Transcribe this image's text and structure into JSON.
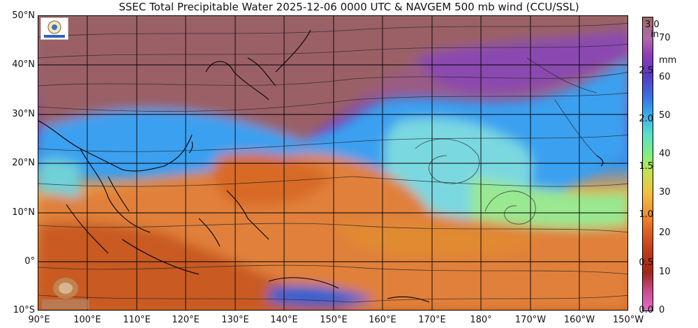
{
  "title": "SSEC Total Precipitable Water  2025-12-06 0000 UTC & NAVGEM 500 mb wind (CCU/SSL)",
  "lat_labels": [
    "50°N",
    "40°N",
    "30°N",
    "20°N",
    "10°N",
    "0°",
    "10°S"
  ],
  "lon_labels": [
    "90°E",
    "100°E",
    "110°E",
    "120°E",
    "130°E",
    "140°E",
    "150°E",
    "160°E",
    "170°E",
    "180°",
    "170°W",
    "160°W",
    "150°W"
  ],
  "colorbar": {
    "unit_in": "in",
    "unit_mm": "mm",
    "in_ticks": [
      "3.0",
      "2.5",
      "2.0",
      "1.5",
      "1.0",
      "0.5",
      "0.0"
    ],
    "mm_ticks": [
      "70",
      "60",
      "50",
      "40",
      "30",
      "20",
      "10",
      "0"
    ],
    "colors": [
      "#9a6a62",
      "#b06aa8",
      "#8c3ab8",
      "#5a3ac4",
      "#3a70e0",
      "#3aaaf0",
      "#5ae0c8",
      "#80f080",
      "#c8e050",
      "#f0c040",
      "#f09030",
      "#e06020",
      "#c03818",
      "#a02818",
      "#c84a8a",
      "#e070c8"
    ]
  },
  "logos": {
    "ssec": "SSEC",
    "cimss": "CIMSS"
  }
}
